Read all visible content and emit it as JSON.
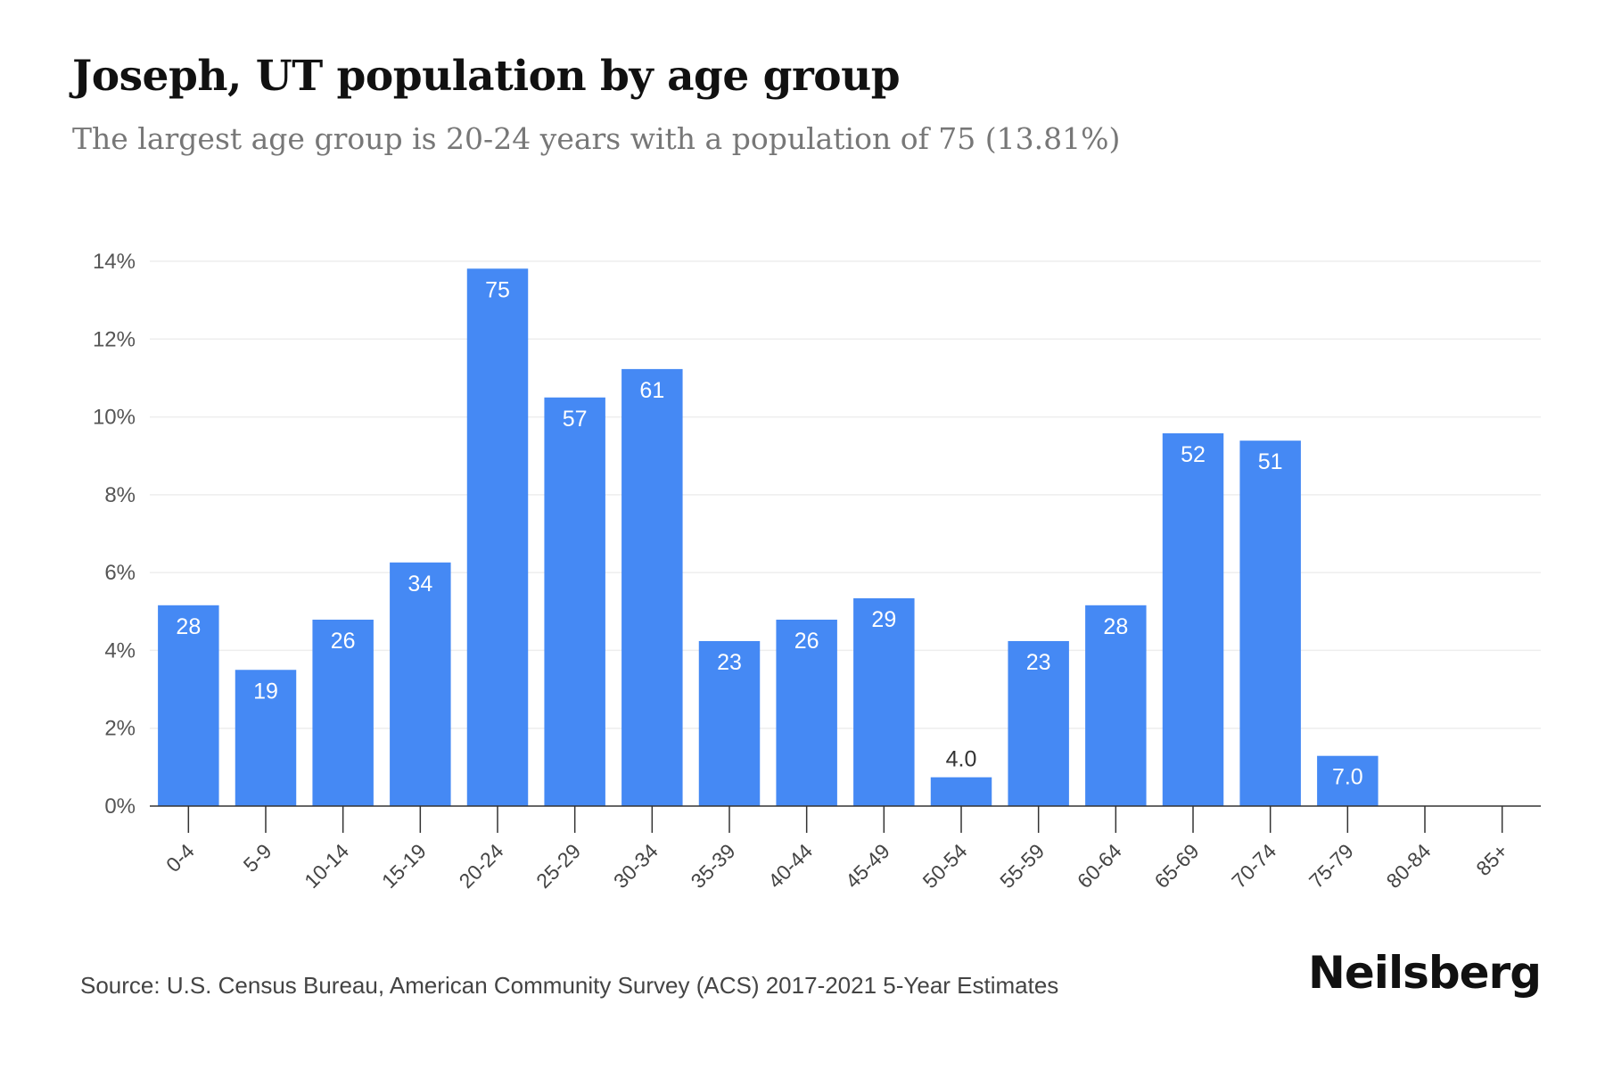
{
  "header": {
    "title": "Joseph, UT population by age group",
    "subtitle": "The largest age group is 20-24 years with a population of 75 (13.81%)"
  },
  "footer": {
    "source": "Source: U.S. Census Bureau, American Community Survey (ACS) 2017-2021 5-Year Estimates",
    "brand": "Neilsberg"
  },
  "colors": {
    "bar": "#4589F4",
    "grid": "#EEEEEE",
    "axis": "#333333"
  },
  "chart_data": {
    "type": "bar",
    "categories": [
      "0-4",
      "5-9",
      "10-14",
      "15-19",
      "20-24",
      "25-29",
      "30-34",
      "35-39",
      "40-44",
      "45-49",
      "50-54",
      "55-59",
      "60-64",
      "65-69",
      "70-74",
      "75-79",
      "80-84",
      "85+"
    ],
    "series": [
      {
        "values": [
          5.16,
          3.5,
          4.79,
          6.26,
          13.81,
          10.5,
          11.23,
          4.24,
          4.79,
          5.34,
          0.74,
          4.24,
          5.16,
          9.58,
          9.39,
          1.29,
          0,
          0
        ]
      }
    ],
    "data_labels": [
      "28",
      "19",
      "26",
      "34",
      "75",
      "57",
      "61",
      "23",
      "26",
      "29",
      "4.0",
      "23",
      "28",
      "52",
      "51",
      "7.0",
      "",
      ""
    ],
    "y_ticks": [
      "0%",
      "2%",
      "4%",
      "6%",
      "8%",
      "10%",
      "12%",
      "14%"
    ],
    "ylim": [
      0,
      14
    ],
    "grid": true,
    "xlabel": "",
    "ylabel": ""
  }
}
